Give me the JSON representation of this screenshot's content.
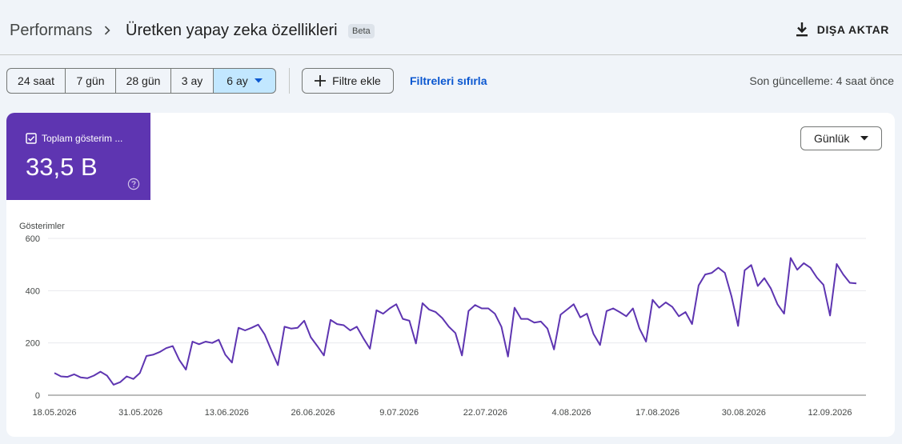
{
  "header": {
    "breadcrumb_root": "Performans",
    "title": "Üretken yapay zeka özellikleri",
    "badge": "Beta",
    "export_label": "DIŞA AKTAR"
  },
  "toolbar": {
    "ranges": [
      "24 saat",
      "7 gün",
      "28 gün",
      "3 ay",
      "6 ay"
    ],
    "selected_range": "6 ay",
    "add_filter_label": "Filtre ekle",
    "reset_filters_label": "Filtreleri sıfırla",
    "last_update": "Son güncelleme: 4 saat önce"
  },
  "metric": {
    "label": "Toplam gösterim ...",
    "value": "33,5 B",
    "color": "#5e35b1"
  },
  "granularity": {
    "selected": "Günlük"
  },
  "chart_data": {
    "type": "line",
    "ylabel": "Gösterimler",
    "ylim": [
      0,
      600
    ],
    "yticks": [
      0,
      200,
      400,
      600
    ],
    "xticks": [
      "18.05.2026",
      "31.05.2026",
      "13.06.2026",
      "26.06.2026",
      "9.07.2026",
      "22.07.2026",
      "4.08.2026",
      "17.08.2026",
      "30.08.2026",
      "12.09.2026"
    ],
    "grid": true,
    "color": "#5e35b1",
    "series": [
      {
        "values": [
          85,
          72,
          70,
          80,
          68,
          65,
          75,
          90,
          75,
          40,
          50,
          72,
          62,
          85,
          150,
          155,
          165,
          180,
          188,
          135,
          98,
          205,
          195,
          205,
          200,
          212,
          155,
          125,
          258,
          248,
          258,
          270,
          232,
          172,
          115,
          262,
          255,
          258,
          285,
          222,
          188,
          152,
          288,
          272,
          268,
          248,
          262,
          218,
          178,
          325,
          312,
          332,
          348,
          292,
          285,
          198,
          352,
          328,
          318,
          295,
          262,
          238,
          152,
          322,
          345,
          332,
          332,
          312,
          262,
          148,
          335,
          292,
          292,
          278,
          282,
          255,
          175,
          308,
          328,
          348,
          298,
          312,
          235,
          192,
          322,
          332,
          318,
          302,
          332,
          255,
          205,
          365,
          335,
          355,
          338,
          302,
          318,
          272,
          420,
          462,
          468,
          488,
          468,
          378,
          265,
          478,
          498,
          418,
          448,
          408,
          348,
          312,
          525,
          480,
          505,
          488,
          450,
          422,
          305,
          502,
          462,
          430,
          428
        ]
      }
    ]
  }
}
